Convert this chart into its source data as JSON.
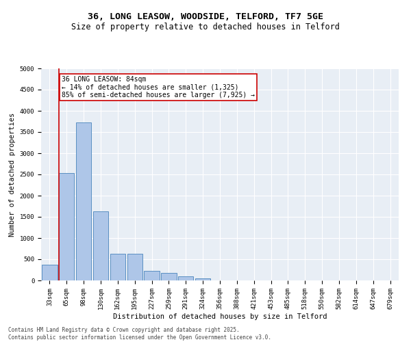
{
  "title_line1": "36, LONG LEASOW, WOODSIDE, TELFORD, TF7 5GE",
  "title_line2": "Size of property relative to detached houses in Telford",
  "xlabel": "Distribution of detached houses by size in Telford",
  "ylabel": "Number of detached properties",
  "categories": [
    "33sqm",
    "65sqm",
    "98sqm",
    "130sqm",
    "162sqm",
    "195sqm",
    "227sqm",
    "259sqm",
    "291sqm",
    "324sqm",
    "356sqm",
    "388sqm",
    "421sqm",
    "453sqm",
    "485sqm",
    "518sqm",
    "550sqm",
    "582sqm",
    "614sqm",
    "647sqm",
    "679sqm"
  ],
  "values": [
    375,
    2525,
    3725,
    1625,
    625,
    625,
    225,
    175,
    100,
    50,
    0,
    0,
    0,
    0,
    0,
    0,
    0,
    0,
    0,
    0,
    0
  ],
  "bar_color": "#aec6e8",
  "bar_edge_color": "#5a8fc2",
  "vline_color": "#cc0000",
  "annotation_text": "36 LONG LEASOW: 84sqm\n← 14% of detached houses are smaller (1,325)\n85% of semi-detached houses are larger (7,925) →",
  "annotation_box_color": "#cc0000",
  "ylim": [
    0,
    5000
  ],
  "yticks": [
    0,
    500,
    1000,
    1500,
    2000,
    2500,
    3000,
    3500,
    4000,
    4500,
    5000
  ],
  "background_color": "#e8eef5",
  "footer_line1": "Contains HM Land Registry data © Crown copyright and database right 2025.",
  "footer_line2": "Contains public sector information licensed under the Open Government Licence v3.0.",
  "title_fontsize": 9.5,
  "subtitle_fontsize": 8.5,
  "axis_label_fontsize": 7.5,
  "tick_fontsize": 6.5,
  "annotation_fontsize": 7,
  "footer_fontsize": 5.5
}
